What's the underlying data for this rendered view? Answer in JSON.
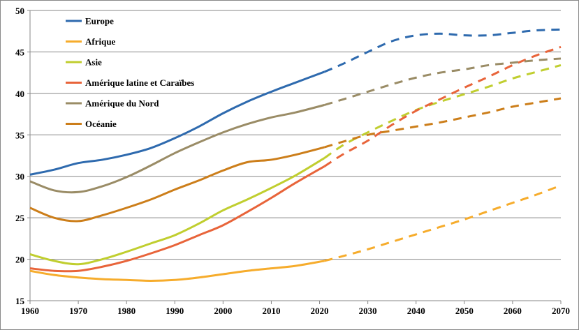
{
  "chart_data": {
    "type": "line",
    "title": "",
    "xlabel": "",
    "ylabel": "",
    "xlim": [
      1960,
      2070
    ],
    "ylim": [
      15,
      50
    ],
    "xticks": [
      1960,
      1970,
      1980,
      1990,
      2000,
      2010,
      2020,
      2030,
      2040,
      2050,
      2060,
      2070
    ],
    "yticks": [
      15,
      20,
      25,
      30,
      35,
      40,
      45,
      50
    ],
    "grid": "horizontal",
    "legend_position": "top-left",
    "projection_start": 2021,
    "series": [
      {
        "name": "Europe",
        "color": "#2E6AAE",
        "x": [
          1960,
          1965,
          1970,
          1975,
          1980,
          1985,
          1990,
          1995,
          2000,
          2005,
          2010,
          2015,
          2021,
          2025,
          2030,
          2035,
          2040,
          2045,
          2050,
          2055,
          2060,
          2065,
          2070
        ],
        "values": [
          30.2,
          30.8,
          31.6,
          32.0,
          32.6,
          33.4,
          34.6,
          36.0,
          37.6,
          39.0,
          40.2,
          41.3,
          42.6,
          43.6,
          45.0,
          46.3,
          47.0,
          47.2,
          47.0,
          47.0,
          47.3,
          47.6,
          47.7
        ]
      },
      {
        "name": "Afrique",
        "color": "#F6AC2C",
        "x": [
          1960,
          1965,
          1970,
          1975,
          1980,
          1985,
          1990,
          1995,
          2000,
          2005,
          2010,
          2015,
          2021,
          2025,
          2030,
          2035,
          2040,
          2045,
          2050,
          2055,
          2060,
          2065,
          2070
        ],
        "values": [
          18.6,
          18.1,
          17.8,
          17.6,
          17.5,
          17.4,
          17.5,
          17.8,
          18.2,
          18.6,
          18.9,
          19.2,
          19.8,
          20.4,
          21.2,
          22.1,
          23.0,
          23.9,
          24.8,
          25.8,
          26.8,
          27.8,
          28.9
        ]
      },
      {
        "name": "Asie",
        "color": "#C0CE2F",
        "x": [
          1960,
          1965,
          1970,
          1975,
          1980,
          1985,
          1990,
          1995,
          2000,
          2005,
          2010,
          2015,
          2021,
          2025,
          2030,
          2035,
          2040,
          2045,
          2050,
          2055,
          2060,
          2065,
          2070
        ],
        "values": [
          20.6,
          19.8,
          19.4,
          20.0,
          20.9,
          21.9,
          22.9,
          24.3,
          25.9,
          27.2,
          28.6,
          30.1,
          32.2,
          33.8,
          35.3,
          36.7,
          38.0,
          39.0,
          39.9,
          40.8,
          41.8,
          42.6,
          43.4
        ]
      },
      {
        "name": "Amérique latine et Caraïbes",
        "color": "#E8643A",
        "x": [
          1960,
          1965,
          1970,
          1975,
          1980,
          1985,
          1990,
          1995,
          2000,
          2005,
          2010,
          2015,
          2021,
          2025,
          2030,
          2035,
          2040,
          2045,
          2050,
          2055,
          2060,
          2065,
          2070
        ],
        "values": [
          18.9,
          18.6,
          18.6,
          19.1,
          19.8,
          20.7,
          21.7,
          22.9,
          24.1,
          25.7,
          27.4,
          29.2,
          31.2,
          32.7,
          34.3,
          36.2,
          37.9,
          39.3,
          40.7,
          42.0,
          43.4,
          44.6,
          45.6
        ]
      },
      {
        "name": "Amérique du Nord",
        "color": "#9A8C66",
        "x": [
          1960,
          1965,
          1970,
          1975,
          1980,
          1985,
          1990,
          1995,
          2000,
          2005,
          2010,
          2015,
          2021,
          2025,
          2030,
          2035,
          2040,
          2045,
          2050,
          2055,
          2060,
          2065,
          2070
        ],
        "values": [
          29.4,
          28.3,
          28.1,
          28.8,
          29.9,
          31.3,
          32.8,
          34.1,
          35.3,
          36.3,
          37.1,
          37.7,
          38.6,
          39.3,
          40.2,
          41.1,
          41.9,
          42.5,
          42.9,
          43.4,
          43.7,
          44.0,
          44.2
        ]
      },
      {
        "name": "Océanie",
        "color": "#CC7E1A",
        "x": [
          1960,
          1965,
          1970,
          1975,
          1980,
          1985,
          1990,
          1995,
          2000,
          2005,
          2010,
          2015,
          2021,
          2025,
          2030,
          2035,
          2040,
          2045,
          2050,
          2055,
          2060,
          2065,
          2070
        ],
        "values": [
          26.2,
          25.0,
          24.6,
          25.3,
          26.2,
          27.2,
          28.4,
          29.5,
          30.7,
          31.7,
          32.0,
          32.6,
          33.5,
          34.2,
          35.0,
          35.5,
          36.0,
          36.5,
          37.1,
          37.7,
          38.4,
          38.9,
          39.4
        ]
      }
    ]
  }
}
